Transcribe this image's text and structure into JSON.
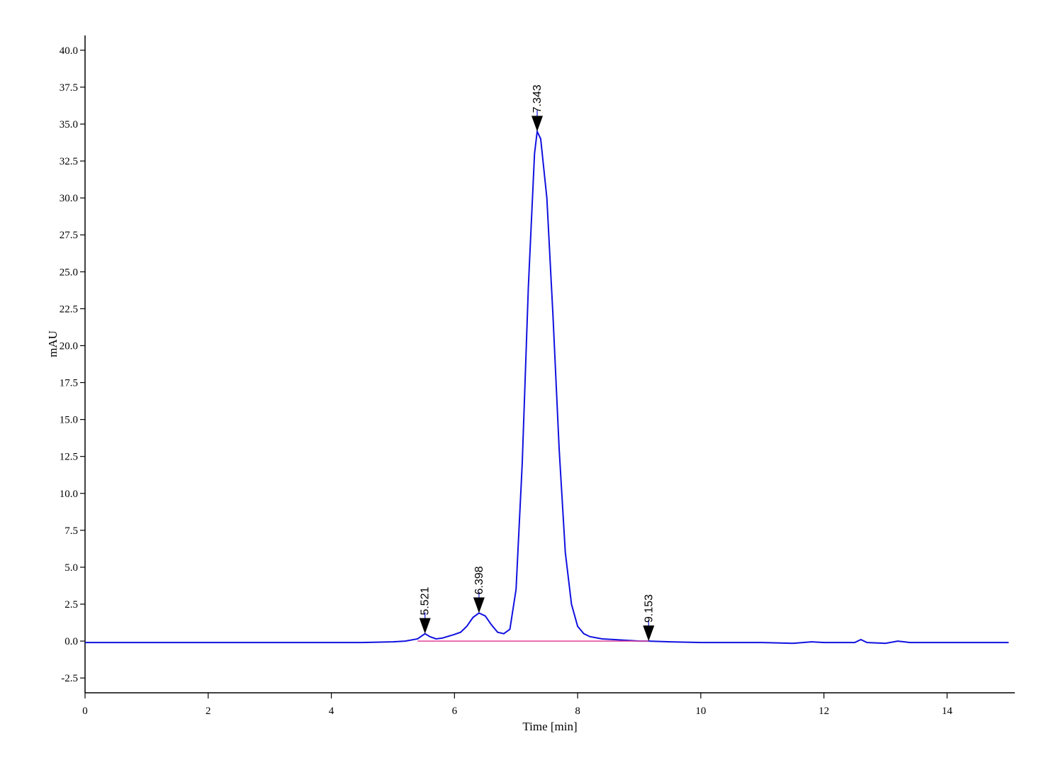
{
  "chart_data": {
    "type": "line",
    "x_label": "Time [min]",
    "y_label": "mAU",
    "xlim": [
      0,
      15.1
    ],
    "ylim": [
      -3.5,
      41
    ],
    "xticks": [
      0,
      2,
      4,
      6,
      8,
      10,
      12,
      14
    ],
    "yticks": [
      -2.5,
      {
        "value": 0,
        "label": "0.0"
      },
      2.5,
      {
        "value": 5,
        "label": "5.0"
      },
      7.5,
      {
        "value": 10,
        "label": "10.0"
      },
      12.5,
      {
        "value": 15,
        "label": "15.0"
      },
      17.5,
      {
        "value": 20,
        "label": "20.0"
      },
      22.5,
      {
        "value": 25,
        "label": "25.0"
      },
      27.5,
      {
        "value": 30,
        "label": "30.0"
      },
      32.5,
      {
        "value": 35,
        "label": "35.0"
      },
      37.5,
      {
        "value": 40,
        "label": "40.0"
      }
    ],
    "x": [
      0,
      1,
      2,
      3,
      4,
      4.5,
      5,
      5.2,
      5.4,
      5.521,
      5.6,
      5.7,
      5.8,
      6.0,
      6.1,
      6.2,
      6.3,
      6.398,
      6.5,
      6.6,
      6.7,
      6.8,
      6.9,
      7.0,
      7.1,
      7.2,
      7.3,
      7.343,
      7.4,
      7.5,
      7.6,
      7.7,
      7.8,
      7.9,
      8.0,
      8.1,
      8.2,
      8.4,
      8.6,
      9.0,
      9.153,
      9.5,
      10,
      11,
      11.5,
      11.8,
      12,
      12.5,
      12.6,
      12.7,
      13,
      13.2,
      13.4,
      14,
      15
    ],
    "series": [
      {
        "color": "#1010e0",
        "values": [
          -0.1,
          -0.1,
          -0.1,
          -0.1,
          -0.1,
          -0.1,
          -0.05,
          0,
          0.15,
          0.5,
          0.3,
          0.15,
          0.2,
          0.45,
          0.6,
          1.0,
          1.6,
          1.9,
          1.7,
          1.1,
          0.6,
          0.5,
          0.8,
          3.5,
          12,
          24,
          33,
          34.5,
          34,
          30,
          22,
          13,
          6,
          2.5,
          1,
          0.5,
          0.3,
          0.15,
          0.1,
          0,
          0,
          -0.05,
          -0.1,
          -0.1,
          -0.15,
          -0.05,
          -0.1,
          -0.1,
          0.1,
          -0.1,
          -0.15,
          0,
          -0.1,
          -0.1,
          -0.1
        ]
      },
      {
        "color": "#e0409a",
        "values": [
          null,
          null,
          null,
          null,
          null,
          null,
          null,
          null,
          0,
          0,
          0,
          0,
          0,
          0,
          0,
          0,
          0,
          0,
          0,
          0,
          0,
          0,
          0,
          0,
          0,
          0,
          0,
          0,
          0,
          0,
          0,
          0,
          0,
          0,
          0,
          0,
          0,
          0,
          0,
          0,
          0,
          null,
          null,
          null,
          null,
          null,
          null,
          null,
          null,
          null,
          null,
          null,
          null,
          null,
          null
        ]
      }
    ],
    "peaks": [
      {
        "x": 5.521,
        "y": 0.5
      },
      {
        "x": 6.398,
        "y": 1.9
      },
      {
        "x": 7.343,
        "y": 34.5
      },
      {
        "x": 9.153,
        "y": 0
      }
    ]
  }
}
